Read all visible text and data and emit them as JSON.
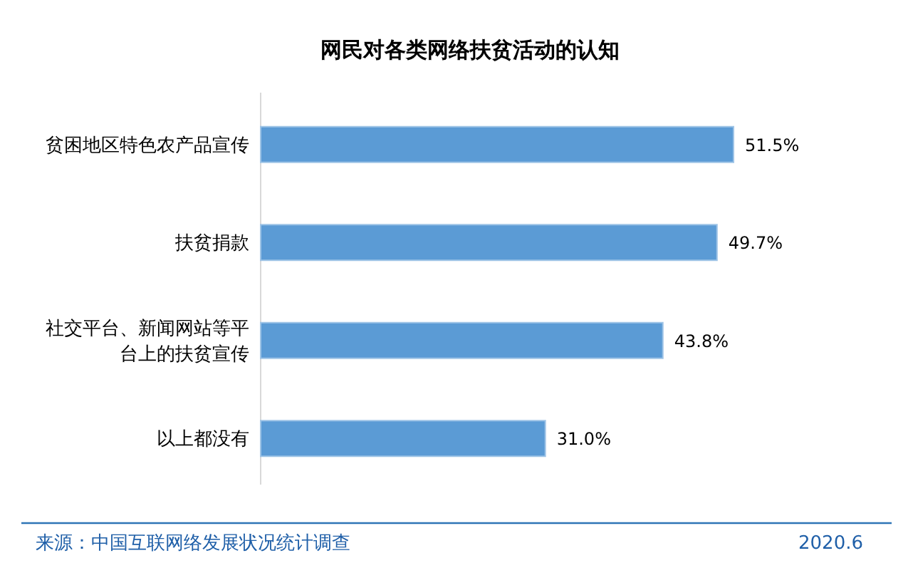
{
  "chart_data": {
    "type": "bar",
    "orientation": "horizontal",
    "title": "网民对各类网络扶贫活动的认知",
    "categories": [
      "贫困地区特色农产品宣传",
      "扶贫捐款",
      "社交平台、新闻网站等平台上的扶贫宣传",
      "以上都没有"
    ],
    "values": [
      51.5,
      49.7,
      43.8,
      31.0
    ],
    "value_labels": [
      "51.5%",
      "49.7%",
      "43.8%",
      "31.0%"
    ],
    "color": "#5b9bd5",
    "annotations": [
      "来源：中国互联网络发展状况统计调查",
      "2020.6"
    ]
  }
}
